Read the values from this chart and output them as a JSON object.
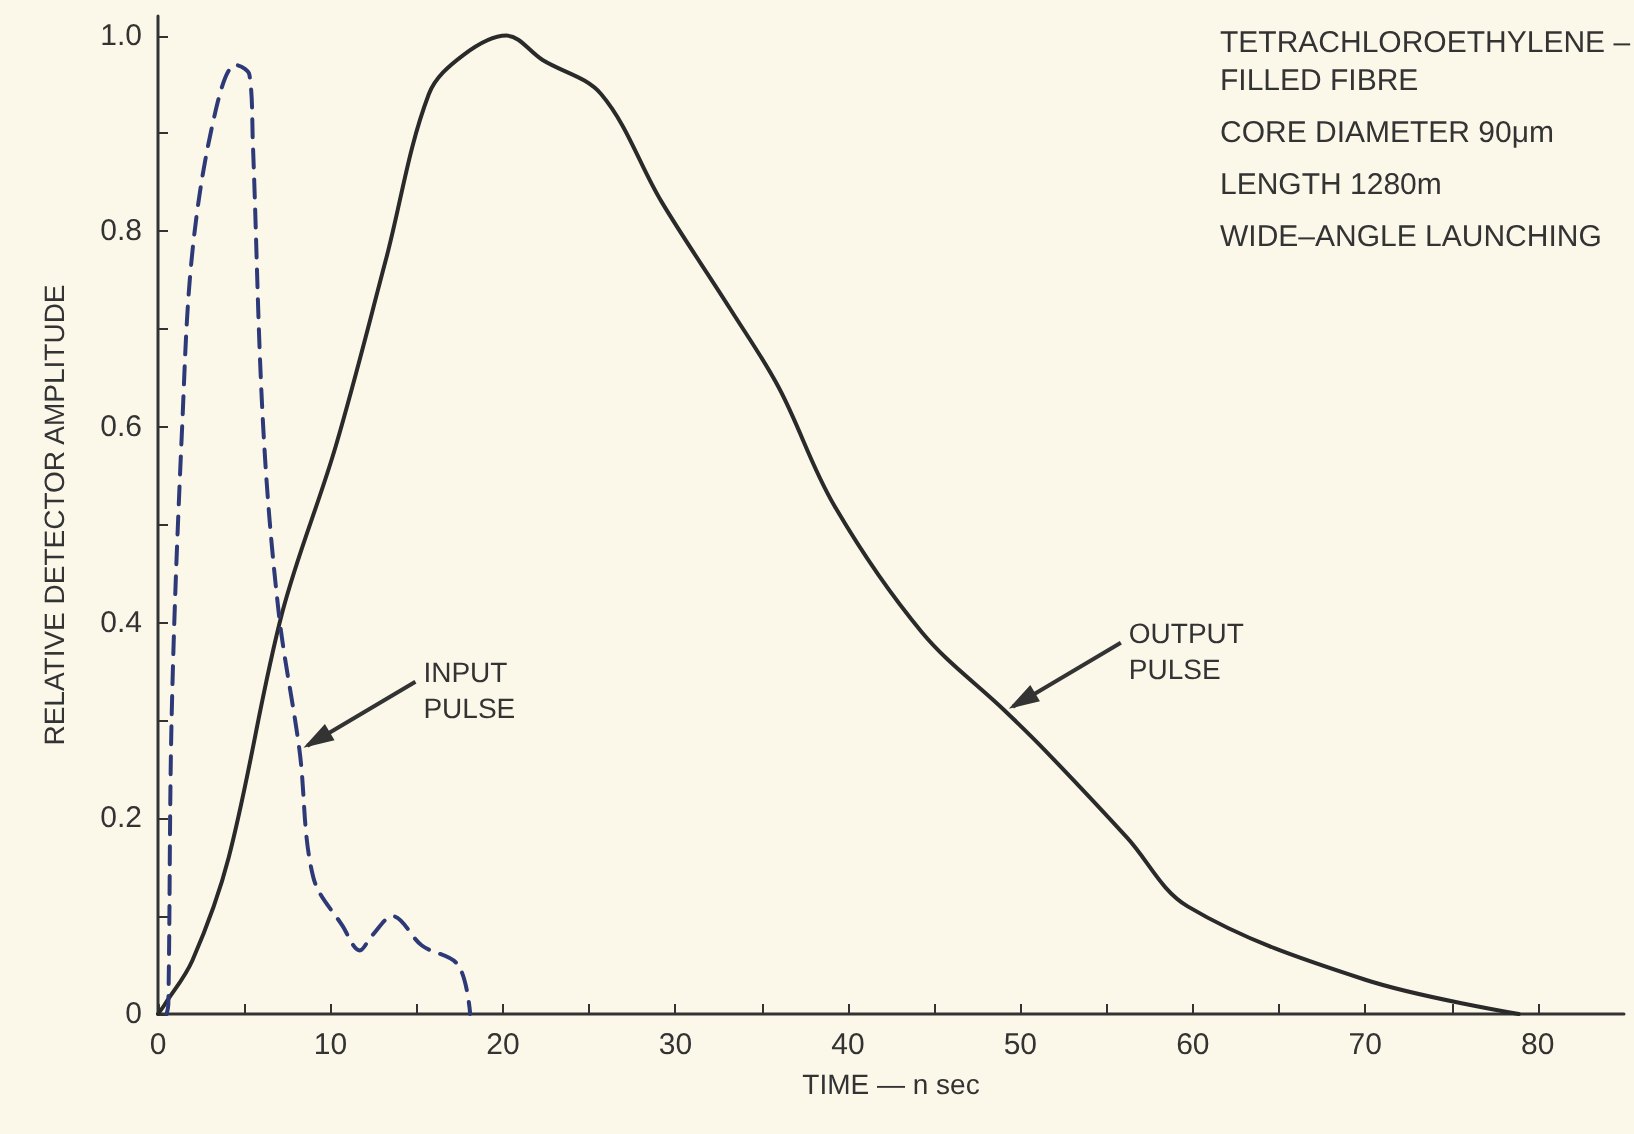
{
  "chart_data": {
    "type": "line",
    "xlabel": "TIME — n sec",
    "ylabel": "RELATIVE DETECTOR AMPLITUDE",
    "xlim": [
      0,
      85
    ],
    "ylim": [
      0,
      1.02
    ],
    "xticks": [
      0,
      {
        "value": 5,
        "label": null
      },
      10,
      {
        "value": 15,
        "label": null
      },
      20,
      {
        "value": 25,
        "label": null
      },
      30,
      {
        "value": 35,
        "label": null
      },
      40,
      {
        "value": 45,
        "label": null
      },
      50,
      {
        "value": 55,
        "label": null
      },
      60,
      {
        "value": 65,
        "label": null
      },
      70,
      {
        "value": 75,
        "label": null
      },
      80
    ],
    "yticks": [
      0,
      {
        "value": 0.1,
        "label": null
      },
      0.2,
      {
        "value": 0.3,
        "label": null
      },
      0.4,
      {
        "value": 0.5,
        "label": null
      },
      0.6,
      {
        "value": 0.7,
        "label": null
      },
      0.8,
      {
        "value": 0.9,
        "label": null
      },
      {
        "value": 1,
        "label": "1.0"
      }
    ],
    "grid": false,
    "marker": "none",
    "series": [
      {
        "color": "#2a2a2a",
        "line_style": "solid",
        "x": [
          0,
          0.4,
          2,
          4.1,
          7.2,
          10.3,
          13.2,
          15.7,
          17.7,
          20.2,
          22.3,
          25.7,
          29.2,
          33.2,
          36,
          39.2,
          44.3,
          49.1,
          51.4,
          56.2,
          59.7,
          70,
          78.9
        ],
        "values": [
          0,
          0.01,
          0.055,
          0.16,
          0.41,
          0.58,
          0.77,
          0.94,
          0.98,
          1.0,
          0.975,
          0.94,
          0.83,
          0.72,
          0.64,
          0.52,
          0.39,
          0.31,
          0.27,
          0.18,
          0.11,
          0.035,
          0
        ]
      },
      {
        "color": "#2e3a78",
        "line_style": "dashed",
        "x": [
          0.5,
          0.6,
          0.8,
          1.4,
          2,
          3.3,
          4.5,
          5.3,
          5.5,
          6.1,
          7,
          8.2,
          9,
          10.7,
          11.7,
          12.4,
          13.6,
          15.3,
          17.4,
          18.1
        ],
        "values": [
          0,
          0.01,
          0.31,
          0.6,
          0.78,
          0.92,
          0.97,
          0.96,
          0.89,
          0.6,
          0.41,
          0.27,
          0.14,
          0.09,
          0.065,
          0.08,
          0.1,
          0.07,
          0.05,
          0
        ]
      }
    ],
    "annotations": [
      {
        "text": "INPUT\nPULSE",
        "x": 8.2,
        "y": 0.27
      },
      {
        "text": "OUTPUT\nPULSE",
        "x": 49.1,
        "y": 0.31
      },
      "TETRACHLOROETHYLENE –\nFILLED FIBRE",
      "CORE DIAMETER 90μm",
      "LENGTH 1280m",
      "WIDE–ANGLE LAUNCHING"
    ]
  }
}
